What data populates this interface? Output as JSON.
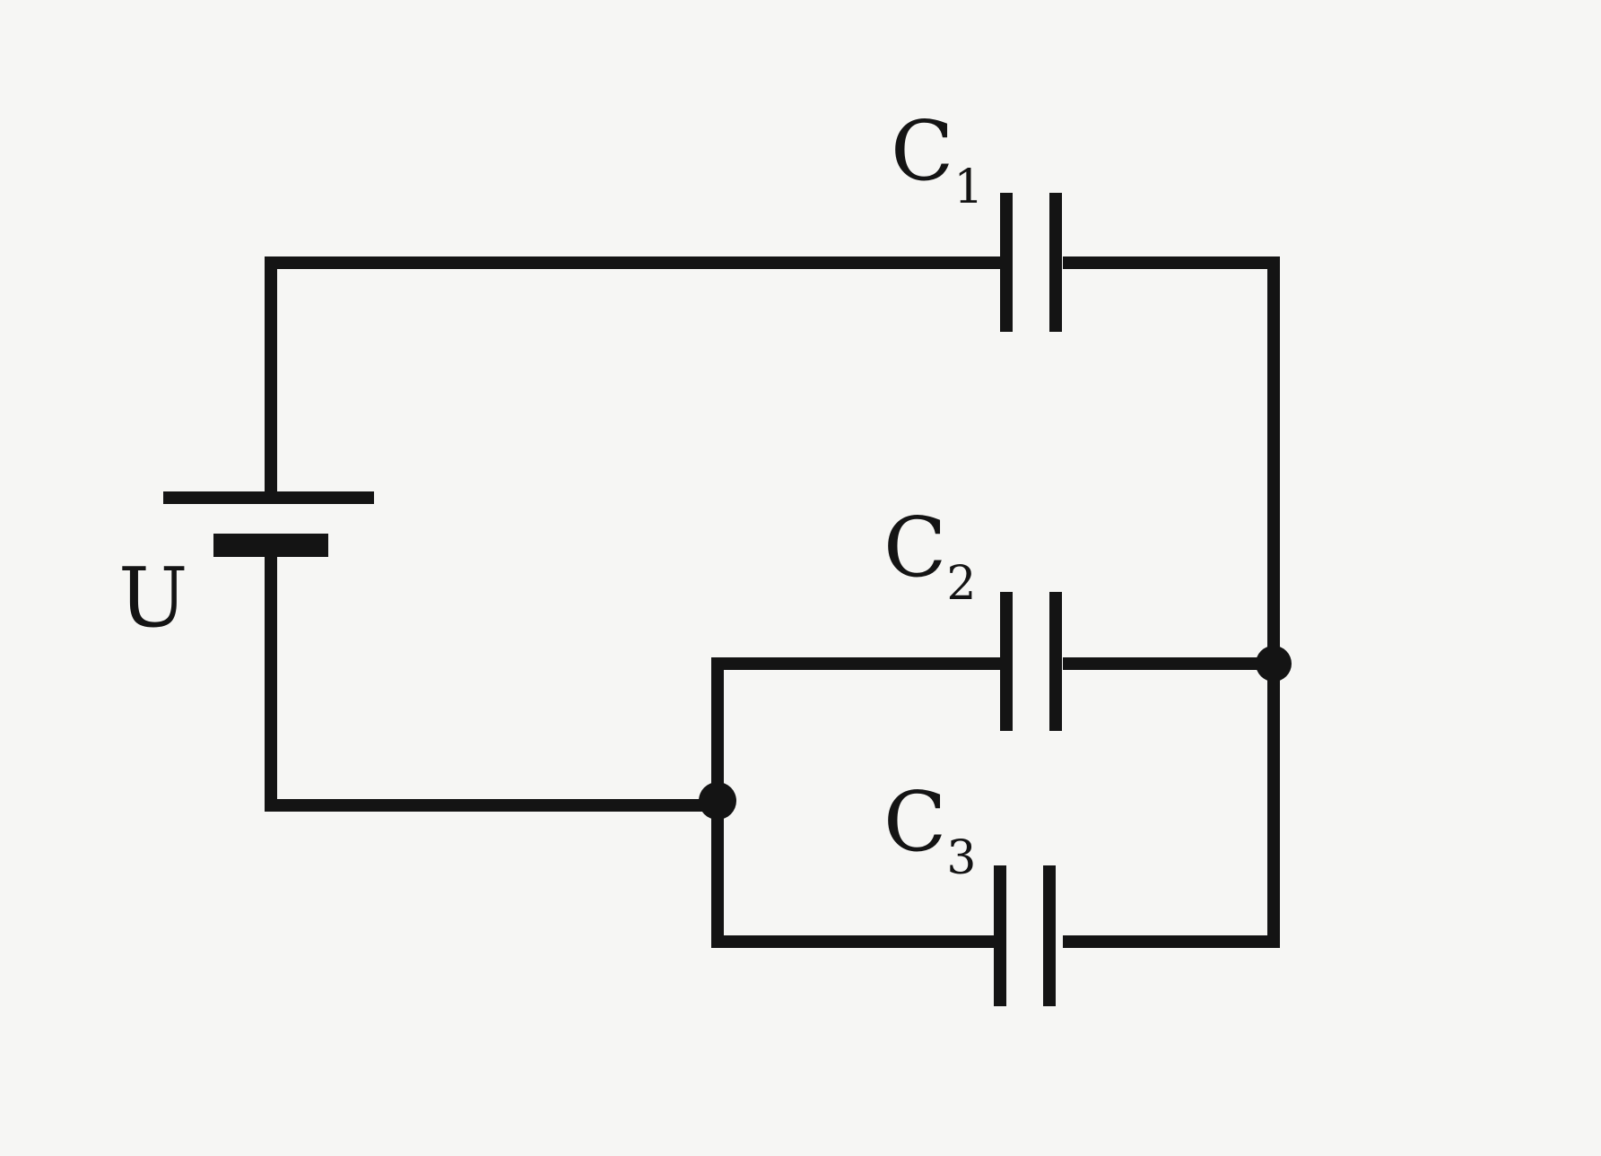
{
  "labels": {
    "battery": "U",
    "c1": {
      "main": "C",
      "sub": "1"
    },
    "c2": {
      "main": "C",
      "sub": "2"
    },
    "c3": {
      "main": "C",
      "sub": "3"
    }
  },
  "colors": {
    "ink": "#141414",
    "paper": "#f6f6f4"
  }
}
